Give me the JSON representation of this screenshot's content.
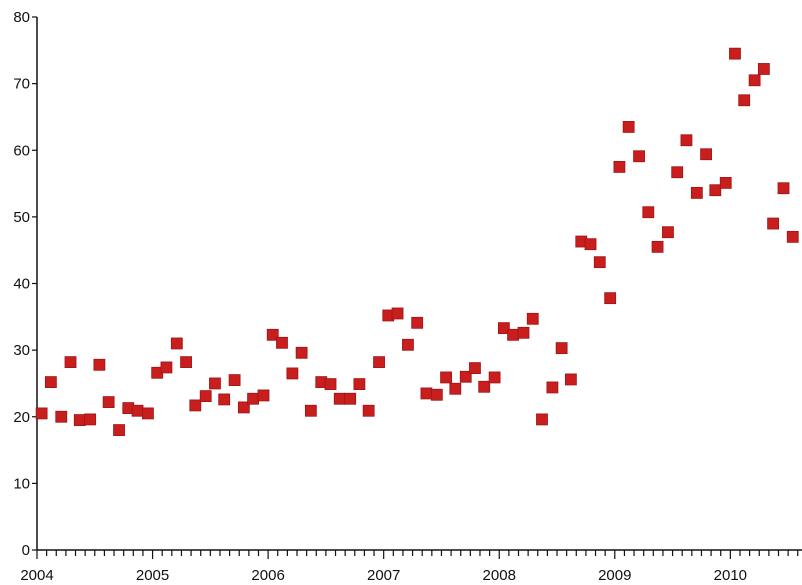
{
  "chart_data": {
    "type": "scatter",
    "title": "",
    "xlabel": "",
    "ylabel": "",
    "xlim": [
      2004.0,
      2010.62
    ],
    "ylim": [
      0,
      80
    ],
    "y_ticks": [
      0,
      10,
      20,
      30,
      40,
      50,
      60,
      70,
      80
    ],
    "x_ticks": [
      2004,
      2005,
      2006,
      2007,
      2008,
      2009,
      2010
    ],
    "x_minor_ticks_per_year": 12,
    "grid": false,
    "legend": "none",
    "marker": "square",
    "color": "#c81e1e",
    "series": [
      {
        "x": [
          2004.04,
          2004.12,
          2004.21,
          2004.29,
          2004.37,
          2004.46,
          2004.54,
          2004.62,
          2004.71,
          2004.79,
          2004.87,
          2004.96,
          2005.04,
          2005.12,
          2005.21,
          2005.29,
          2005.37,
          2005.46,
          2005.54,
          2005.62,
          2005.71,
          2005.79,
          2005.87,
          2005.96,
          2006.04,
          2006.12,
          2006.21,
          2006.29,
          2006.37,
          2006.46,
          2006.54,
          2006.62,
          2006.71,
          2006.79,
          2006.87,
          2006.96,
          2007.04,
          2007.12,
          2007.21,
          2007.29,
          2007.37,
          2007.46,
          2007.54,
          2007.62,
          2007.71,
          2007.79,
          2007.87,
          2007.96,
          2008.04,
          2008.12,
          2008.21,
          2008.29,
          2008.37,
          2008.46,
          2008.54,
          2008.62,
          2008.71,
          2008.79,
          2008.87,
          2008.96,
          2009.04,
          2009.12,
          2009.21,
          2009.29,
          2009.37,
          2009.46,
          2009.54,
          2009.62,
          2009.71,
          2009.79,
          2009.87,
          2009.96,
          2010.04,
          2010.12,
          2010.21,
          2010.29,
          2010.37,
          2010.46,
          2010.54
        ],
        "y": [
          20.5,
          25.2,
          20.0,
          28.2,
          19.5,
          19.6,
          27.8,
          22.2,
          18.0,
          21.3,
          20.9,
          20.5,
          26.6,
          27.4,
          31.0,
          28.2,
          21.7,
          23.1,
          25.0,
          22.6,
          25.5,
          21.4,
          22.7,
          23.2,
          32.3,
          31.1,
          26.5,
          29.6,
          20.9,
          25.2,
          24.9,
          22.7,
          22.7,
          24.9,
          20.9,
          28.2,
          35.2,
          35.5,
          30.8,
          34.1,
          23.5,
          23.3,
          25.9,
          24.2,
          26.0,
          27.3,
          24.5,
          25.9,
          33.3,
          32.3,
          32.6,
          34.7,
          19.6,
          24.4,
          30.3,
          25.6,
          46.3,
          45.9,
          43.2,
          37.8,
          57.5,
          63.5,
          59.1,
          50.7,
          45.5,
          47.7,
          56.7,
          61.5,
          53.6,
          59.4,
          54.0,
          55.1,
          74.5,
          67.5,
          70.5,
          72.2,
          49.0,
          54.3,
          47.0
        ]
      }
    ]
  }
}
